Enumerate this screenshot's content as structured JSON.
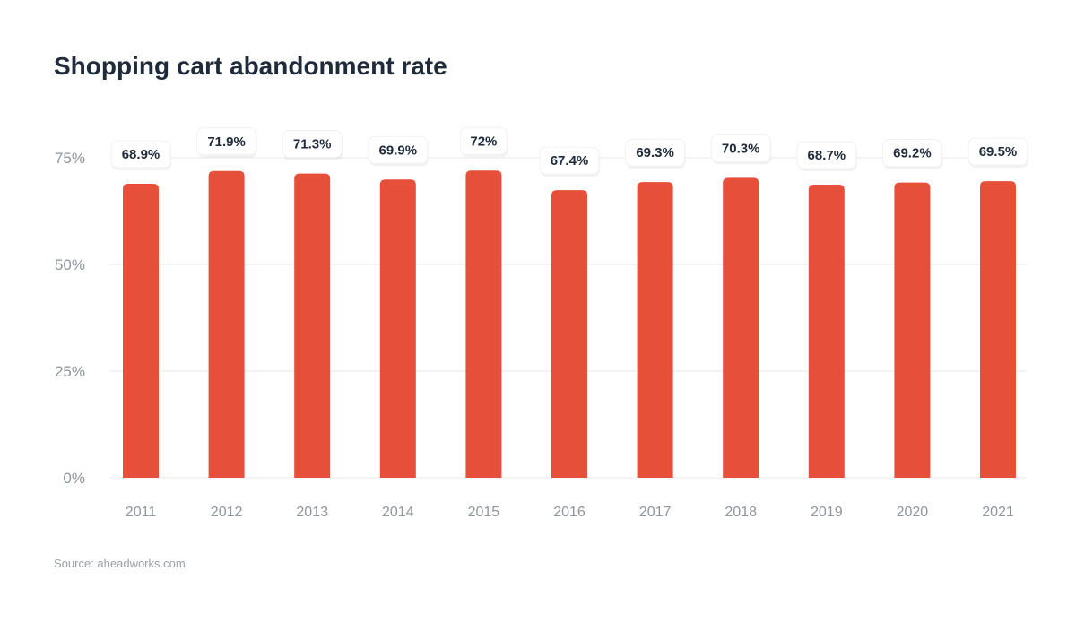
{
  "chart_data": {
    "type": "bar",
    "title": "Shopping cart abandonment rate",
    "xlabel": "",
    "ylabel": "",
    "categories": [
      "2011",
      "2012",
      "2013",
      "2014",
      "2015",
      "2016",
      "2017",
      "2018",
      "2019",
      "2020",
      "2021"
    ],
    "values": [
      68.9,
      71.9,
      71.3,
      69.9,
      72,
      67.4,
      69.3,
      70.3,
      68.7,
      69.2,
      69.5
    ],
    "data_labels": [
      "68.9%",
      "71.9%",
      "71.3%",
      "69.9%",
      "72%",
      "67.4%",
      "69.3%",
      "70.3%",
      "68.7%",
      "69.2%",
      "69.5%"
    ],
    "ylim": [
      0,
      75
    ],
    "yticks": [
      0,
      25,
      50,
      75
    ],
    "ytick_labels": [
      "0%",
      "25%",
      "50%",
      "75%"
    ],
    "grid": true,
    "legend": "none",
    "bar_color": "#e64f39"
  },
  "footer": {
    "source": "Source: aheadworks.com"
  }
}
